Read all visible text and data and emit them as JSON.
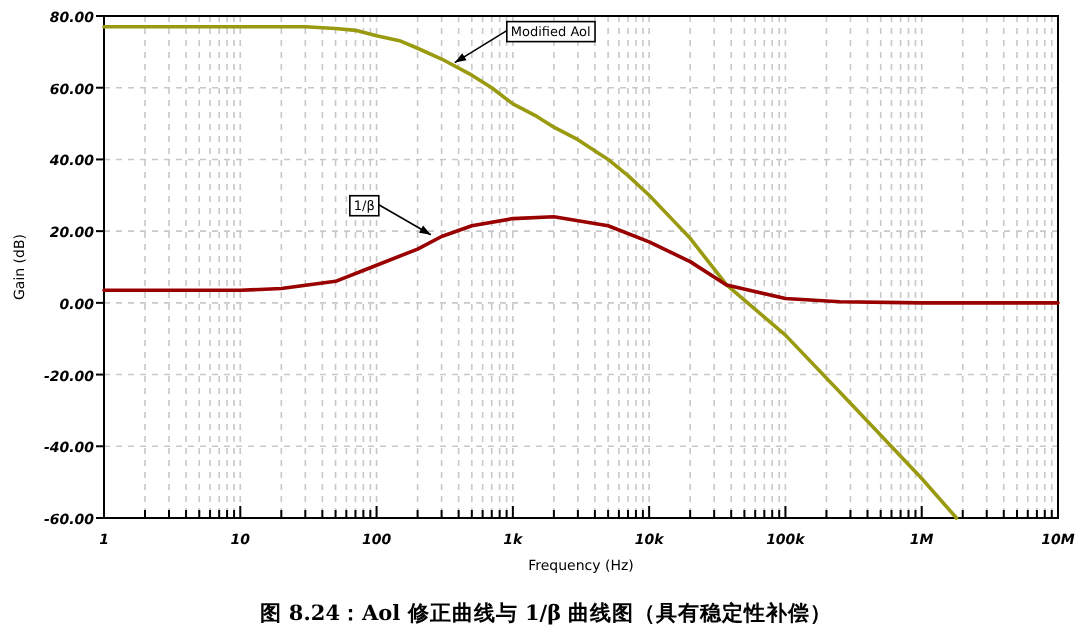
{
  "chart_data": {
    "type": "line",
    "xlabel": "Frequency (Hz)",
    "ylabel": "Gain (dB)",
    "log": "x",
    "xlim": [
      1,
      10000000
    ],
    "xticks": [
      {
        "value": 1,
        "label": "1"
      },
      {
        "value": 10,
        "label": "10"
      },
      {
        "value": 100,
        "label": "100"
      },
      {
        "value": 1000,
        "label": "1k"
      },
      {
        "value": 10000,
        "label": "10k"
      },
      {
        "value": 100000,
        "label": "100k"
      },
      {
        "value": 1000000,
        "label": "1M"
      },
      {
        "value": 10000000,
        "label": "10M"
      }
    ],
    "ylim": [
      -60,
      80
    ],
    "yticks": [
      {
        "value": -60,
        "label": "-60.00"
      },
      {
        "value": -40,
        "label": "-40.00"
      },
      {
        "value": -20,
        "label": "-20.00"
      },
      {
        "value": 0,
        "label": "0.00"
      },
      {
        "value": 20,
        "label": "20.00"
      },
      {
        "value": 40,
        "label": "40.00"
      },
      {
        "value": 60,
        "label": "60.00"
      },
      {
        "value": 80,
        "label": "80.00"
      }
    ],
    "grid": true,
    "line_style": "solid",
    "series": [
      {
        "color": "#9a9a10",
        "x": [
          1,
          10,
          30,
          50,
          70,
          100,
          150,
          200,
          300,
          500,
          700,
          1000,
          1500,
          2000,
          3000,
          5000,
          7000,
          10000,
          15000,
          20000,
          37000,
          100000,
          300000,
          1000000,
          1800000
        ],
        "values": [
          77,
          77,
          77,
          76.5,
          76,
          74.5,
          73,
          71,
          68,
          63.5,
          60,
          55.5,
          52,
          49,
          45.5,
          40,
          35.5,
          30,
          23,
          18,
          5,
          -9,
          -28,
          -49,
          -60
        ]
      },
      {
        "color": "#990000",
        "x": [
          1,
          10,
          20,
          50,
          100,
          200,
          300,
          500,
          1000,
          2000,
          5000,
          10000,
          20000,
          37000,
          100000,
          250000,
          1000000,
          10000000
        ],
        "values": [
          3.5,
          3.5,
          4,
          6,
          10.5,
          15,
          18.5,
          21.5,
          23.5,
          24,
          21.5,
          17,
          11.5,
          5,
          1.2,
          0.3,
          0,
          0
        ]
      }
    ],
    "annotations": [
      {
        "text": "Modified Aol",
        "x": 375,
        "y": 67
      },
      {
        "text": "1/β",
        "x": 250,
        "y": 19
      },
      "图 8.24：Aol 修正曲线与 1/β 曲线图（具有稳定性补偿）"
    ]
  }
}
